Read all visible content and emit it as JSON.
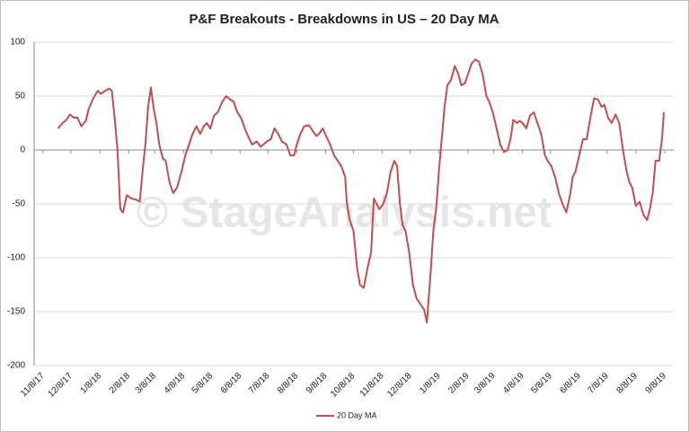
{
  "chart_data": {
    "type": "line",
    "title": "P&F Breakouts - Breakdowns in US – 20 Day MA",
    "watermark": "© StageAnalysis.net",
    "xlim": [
      "11/8/17",
      "9/8/19"
    ],
    "xticks": [
      "11/8/17",
      "12/8/17",
      "1/8/18",
      "2/8/18",
      "3/8/18",
      "4/8/18",
      "5/8/18",
      "6/8/18",
      "7/8/18",
      "8/8/18",
      "9/8/18",
      "10/8/18",
      "11/8/18",
      "12/8/18",
      "1/8/19",
      "2/8/19",
      "3/8/19",
      "4/8/19",
      "5/8/19",
      "6/8/19",
      "7/8/19",
      "8/8/19",
      "9/8/19"
    ],
    "ylim": [
      -200,
      100
    ],
    "yticks": [
      -200,
      -150,
      -100,
      -50,
      0,
      50,
      100
    ],
    "grid": true,
    "legend": "bottom",
    "x": [
      "11/24/17",
      "11/29/17",
      "12/3/17",
      "12/7/17",
      "12/11/17",
      "12/15/17",
      "12/19/17",
      "12/24/17",
      "12/27/17",
      "1/1/18",
      "1/6/18",
      "1/9/18",
      "1/14/18",
      "1/18/18",
      "1/21/18",
      "1/24/18",
      "1/27/18",
      "1/30/18",
      "2/2/18",
      "2/6/18",
      "2/11/18",
      "2/16/18",
      "2/20/18",
      "2/23/18",
      "2/26/18",
      "3/1/18",
      "3/4/18",
      "3/7/18",
      "3/10/18",
      "3/13/18",
      "3/17/18",
      "3/20/18",
      "3/24/18",
      "3/28/18",
      "4/1/18",
      "4/6/18",
      "4/10/18",
      "4/14/18",
      "4/18/18",
      "4/22/18",
      "4/26/18",
      "4/30/18",
      "5/3/18",
      "5/7/18",
      "5/11/18",
      "5/15/18",
      "5/20/18",
      "5/24/18",
      "5/28/18",
      "6/1/18",
      "6/5/18",
      "6/9/18",
      "6/13/18",
      "6/17/18",
      "6/21/18",
      "6/26/18",
      "6/30/18",
      "7/3/18",
      "7/7/18",
      "7/11/18",
      "7/15/18",
      "7/19/18",
      "7/23/18",
      "7/28/18",
      "8/1/18",
      "8/5/18",
      "8/8/18",
      "8/12/18",
      "8/16/18",
      "8/21/18",
      "8/25/18",
      "8/29/18",
      "9/1/18",
      "9/5/18",
      "9/9/18",
      "9/13/18",
      "9/17/18",
      "9/21/18",
      "9/25/18",
      "9/29/18",
      "10/1/18",
      "10/4/18",
      "10/8/18",
      "10/12/18",
      "10/15/18",
      "10/19/18",
      "10/23/18",
      "10/27/18",
      "10/30/18",
      "11/2/18",
      "11/5/18",
      "11/9/18",
      "11/13/18",
      "11/17/18",
      "11/21/18",
      "11/24/18",
      "11/27/18",
      "11/30/18",
      "12/3/18",
      "12/7/18",
      "12/11/18",
      "12/15/18",
      "12/19/18",
      "12/23/18",
      "12/26/18",
      "12/30/18",
      "1/2/19",
      "1/5/19",
      "1/8/19",
      "1/11/19",
      "1/14/19",
      "1/17/19",
      "1/21/19",
      "1/25/19",
      "1/29/19",
      "2/1/19",
      "2/5/19",
      "2/9/19",
      "2/12/19",
      "2/16/19",
      "2/20/19",
      "2/24/19",
      "2/28/19",
      "3/3/19",
      "3/7/19",
      "3/11/19",
      "3/15/19",
      "3/19/19",
      "3/23/19",
      "3/26/19",
      "3/29/19",
      "4/2/19",
      "4/5/19",
      "4/8/19",
      "4/12/19",
      "4/16/19",
      "4/20/19",
      "4/24/19",
      "4/28/19",
      "5/2/19",
      "5/5/19",
      "5/9/19",
      "5/13/19",
      "5/17/19",
      "5/21/19",
      "5/25/19",
      "5/29/19",
      "6/1/19",
      "6/4/19",
      "6/8/19",
      "6/12/19",
      "6/16/19",
      "6/20/19",
      "6/24/19",
      "6/28/19",
      "7/2/19",
      "7/5/19",
      "7/9/19",
      "7/13/19",
      "7/17/19",
      "7/21/19",
      "7/25/19",
      "7/29/19",
      "8/1/19",
      "8/4/19",
      "8/8/19",
      "8/12/19",
      "8/16/19",
      "8/20/19",
      "8/23/19",
      "8/26/19",
      "8/29/19",
      "9/2/19",
      "9/5/19",
      "9/7/19"
    ],
    "series": [
      {
        "name": "20 Day MA",
        "color": "#c0504d",
        "values": [
          20,
          25,
          28,
          33,
          30,
          30,
          22,
          27,
          38,
          48,
          55,
          52,
          55,
          57,
          55,
          30,
          0,
          -55,
          -58,
          -42,
          -45,
          -46,
          -48,
          -20,
          5,
          40,
          58,
          38,
          25,
          5,
          -8,
          -10,
          -30,
          -40,
          -35,
          -20,
          -5,
          5,
          15,
          22,
          15,
          22,
          25,
          20,
          32,
          35,
          45,
          50,
          47,
          45,
          35,
          30,
          20,
          12,
          5,
          8,
          3,
          5,
          8,
          10,
          20,
          15,
          8,
          5,
          -5,
          -5,
          5,
          15,
          22,
          23,
          18,
          13,
          15,
          20,
          12,
          5,
          -5,
          -10,
          -15,
          -25,
          -50,
          -65,
          -75,
          -110,
          -125,
          -128,
          -110,
          -95,
          -45,
          -50,
          -55,
          -50,
          -40,
          -20,
          -10,
          -15,
          -50,
          -70,
          -75,
          -95,
          -125,
          -138,
          -143,
          -148,
          -160,
          -115,
          -75,
          -55,
          -20,
          10,
          40,
          60,
          65,
          78,
          70,
          60,
          62,
          72,
          80,
          84,
          82,
          70,
          50,
          45,
          35,
          20,
          5,
          -2,
          0,
          10,
          28,
          25,
          27,
          25,
          20,
          32,
          35,
          25,
          15,
          -5,
          -10,
          -15,
          -25,
          -40,
          -50,
          -58,
          -42,
          -25,
          -20,
          -5,
          10,
          10,
          30,
          48,
          47,
          40,
          42,
          30,
          25,
          33,
          25,
          0,
          -20,
          -30,
          -35,
          -52,
          -48,
          -60,
          -65,
          -55,
          -40,
          -10,
          -10,
          10,
          35
        ]
      }
    ]
  }
}
